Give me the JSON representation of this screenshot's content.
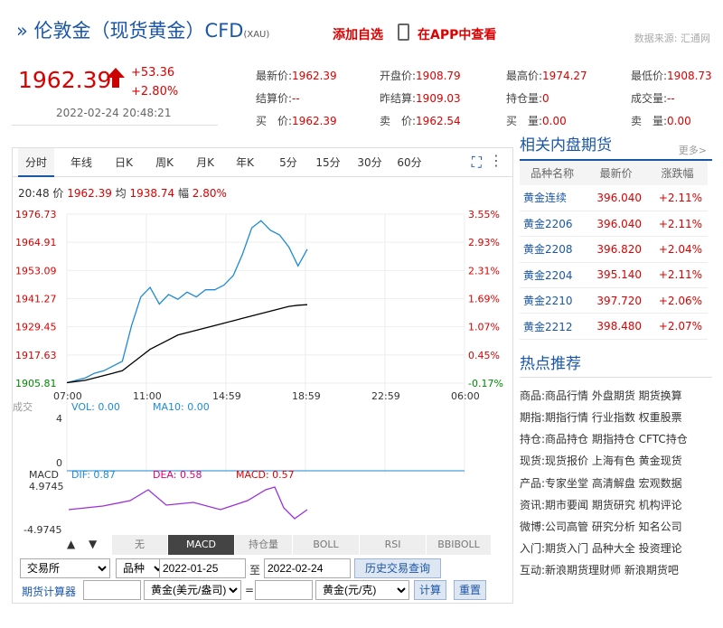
{
  "header": {
    "title": "伦敦金（现货黄金）CFD",
    "code": "(XAU)",
    "favorite": "添加自选",
    "app": "在APP中查看",
    "source": "数据来源: 汇通网"
  },
  "quote": {
    "price": "1962.39",
    "change": "+53.36",
    "pct": "+2.80%",
    "datetime": "2022-02-24 20:48:21",
    "cells": [
      [
        "最新价:",
        "1962.39"
      ],
      [
        "开盘价:",
        "1908.79"
      ],
      [
        "最高价:",
        "1974.27"
      ],
      [
        "最低价:",
        "1908.73"
      ],
      [
        "结算价:",
        "--"
      ],
      [
        "昨结算:",
        "1909.03"
      ],
      [
        "持仓量:",
        "0"
      ],
      [
        "成交量:",
        "--"
      ],
      [
        "买　价:",
        "1962.39"
      ],
      [
        "卖　价:",
        "1962.54"
      ],
      [
        "买　量:",
        "0.00"
      ],
      [
        "卖　量:",
        "0.00"
      ]
    ]
  },
  "tabs": [
    "分时",
    "年线",
    "日K",
    "周K",
    "月K",
    "年K",
    "5分",
    "15分",
    "30分",
    "60分"
  ],
  "info": {
    "time": "20:48",
    "price": "1962.39",
    "avg": "1938.74",
    "pct": "2.80%"
  },
  "chart_data": {
    "type": "line",
    "x_ticks": [
      "07:00",
      "11:00",
      "14:59",
      "18:59",
      "22:59",
      "06:00"
    ],
    "y_left": [
      "1976.73",
      "1964.91",
      "1953.09",
      "1941.27",
      "1929.45",
      "1917.63",
      "1905.81"
    ],
    "y_right": [
      "3.55%",
      "2.93%",
      "2.31%",
      "1.69%",
      "1.07%",
      "0.45%",
      "-0.17%"
    ],
    "ylim": [
      1905.81,
      1976.73
    ],
    "series": [
      {
        "name": "价",
        "values": [
          1906,
          1907,
          1908,
          1910,
          1911,
          1913,
          1915,
          1930,
          1942,
          1946,
          1939,
          1943,
          1941,
          1944,
          1942,
          1945,
          1945,
          1947,
          1951,
          1960,
          1971,
          1974,
          1970,
          1968,
          1963,
          1955,
          1962
        ]
      },
      {
        "name": "均",
        "values": [
          1906,
          1906.5,
          1907,
          1908,
          1909,
          1910,
          1911,
          1914,
          1917,
          1920,
          1922,
          1924,
          1926,
          1927,
          1928,
          1929,
          1930,
          1931,
          1932,
          1933,
          1934,
          1935,
          1936,
          1937,
          1938,
          1938.5,
          1938.74
        ]
      }
    ]
  },
  "vol": {
    "label": "成交",
    "vol": "VOL: 0.00",
    "ma10": "MA10: 0.00",
    "top": "4",
    "zero": "0"
  },
  "macd": {
    "label": "MACD",
    "dif": "DIF: 0.87",
    "dea": "DEA: 0.58",
    "macd": "MACD: 0.57",
    "hi": "4.9745",
    "lo": "-4.9745"
  },
  "indicators": [
    "无",
    "MACD",
    "持仓量",
    "BOLL",
    "RSI",
    "BBIBOLL"
  ],
  "controls": {
    "exchange": "交易所",
    "variety": "品种",
    "from": "2022-01-25",
    "to_label": "至",
    "to": "2022-02-24",
    "query": "历史交易查询",
    "calc": "期货计算器",
    "unit1": "黄金(美元/盎司)",
    "eq": "=",
    "unit2": "黄金(元/克)",
    "compute": "计算",
    "reset": "重置"
  },
  "side": {
    "title": "相关内盘期货",
    "more": "更多>",
    "cols": [
      "品种名称",
      "最新价",
      "涨跌幅"
    ],
    "rows": [
      [
        "黄金连续",
        "396.040",
        "+2.11%"
      ],
      [
        "黄金2206",
        "396.040",
        "+2.11%"
      ],
      [
        "黄金2208",
        "396.820",
        "+2.04%"
      ],
      [
        "黄金2204",
        "395.140",
        "+2.11%"
      ],
      [
        "黄金2210",
        "397.720",
        "+2.06%"
      ],
      [
        "黄金2212",
        "398.480",
        "+2.07%"
      ]
    ],
    "hot_title": "热点推荐",
    "hot": [
      [
        "商品:",
        "商品行情 外盘期货 期货换算"
      ],
      [
        "期指:",
        "期指行情 行业指数 权重股票"
      ],
      [
        "持仓:",
        "商品持仓 期指持仓 CFTC持仓"
      ],
      [
        "现货:",
        "现货报价 上海有色 黄金现货"
      ],
      [
        "产品:",
        "专家坐堂 高清解盘 宏观数据"
      ],
      [
        "资讯:",
        "期市要闻 期货研究 机构评论"
      ],
      [
        "微博:",
        "公司高管 研究分析 知名公司"
      ],
      [
        "入门:",
        "期货入门 品种大全 投资理论"
      ],
      [
        "互动:",
        "新浪期货理财师 新浪期货吧"
      ]
    ]
  }
}
